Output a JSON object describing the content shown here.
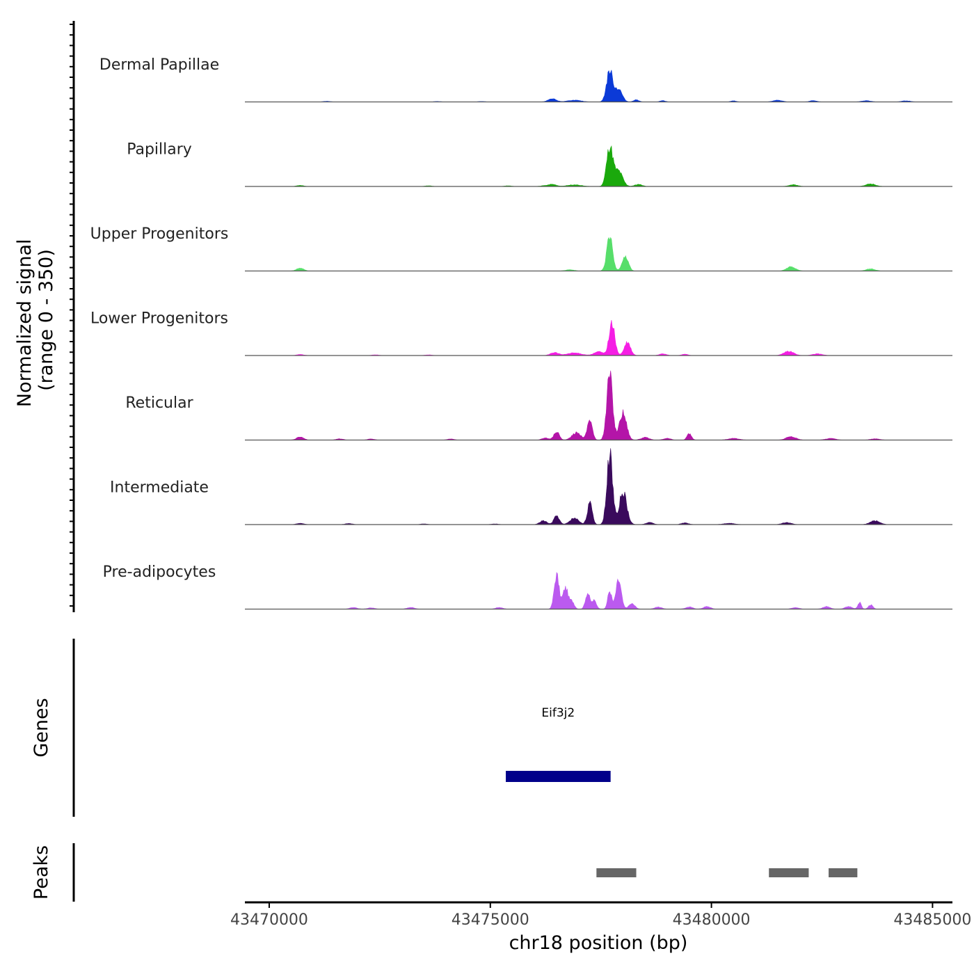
{
  "chart_data": {
    "type": "area",
    "title": "",
    "ylabel_line1": "Normalized signal",
    "ylabel_line2": "(range 0 - 350)",
    "yrange": [
      0,
      350
    ],
    "xlabel": "chr18 position (bp)",
    "xlim": [
      43469450,
      43485450
    ],
    "xticks": [
      43470000,
      43475000,
      43480000,
      43485000
    ],
    "xtick_labels": [
      "43470000",
      "43475000",
      "43480000",
      "43485000"
    ],
    "series": [
      {
        "name": "Dermal Papillae",
        "color": "#0b3ad7",
        "baseline": [
          [
            43471300,
            3
          ],
          [
            43473800,
            2
          ],
          [
            43474800,
            2
          ]
        ],
        "peaks": [
          [
            43476400,
            15,
            90
          ],
          [
            43476900,
            8,
            150
          ],
          [
            43477700,
            145,
            70
          ],
          [
            43477900,
            60,
            80
          ],
          [
            43478300,
            10,
            60
          ],
          [
            43478900,
            6,
            60
          ],
          [
            43480500,
            5,
            60
          ],
          [
            43481500,
            8,
            100
          ],
          [
            43482300,
            6,
            80
          ],
          [
            43483500,
            6,
            100
          ],
          [
            43484400,
            5,
            100
          ]
        ]
      },
      {
        "name": "Papillary",
        "color": "#1aa90c",
        "baseline": [
          [
            43470700,
            5
          ],
          [
            43473600,
            3
          ],
          [
            43475400,
            3
          ],
          [
            43476200,
            3
          ]
        ],
        "peaks": [
          [
            43476400,
            10,
            90
          ],
          [
            43476900,
            8,
            150
          ],
          [
            43477700,
            180,
            70
          ],
          [
            43477900,
            70,
            90
          ],
          [
            43478350,
            10,
            80
          ],
          [
            43481850,
            8,
            100
          ],
          [
            43483600,
            12,
            110
          ]
        ]
      },
      {
        "name": "Upper Progenitors",
        "color": "#57de6a",
        "baseline": [
          [
            43470700,
            14
          ]
        ],
        "peaks": [
          [
            43476800,
            6,
            100
          ],
          [
            43477700,
            160,
            65
          ],
          [
            43478050,
            70,
            70
          ],
          [
            43481800,
            20,
            100
          ],
          [
            43483600,
            10,
            100
          ]
        ]
      },
      {
        "name": "Lower Progenitors",
        "color": "#f51ee4",
        "baseline": [
          [
            43470700,
            5
          ],
          [
            43472400,
            3
          ],
          [
            43473600,
            3
          ]
        ],
        "peaks": [
          [
            43476450,
            14,
            90
          ],
          [
            43476900,
            12,
            160
          ],
          [
            43477450,
            18,
            100
          ],
          [
            43477750,
            150,
            65
          ],
          [
            43478100,
            60,
            70
          ],
          [
            43478900,
            8,
            80
          ],
          [
            43479400,
            6,
            70
          ],
          [
            43481750,
            20,
            110
          ],
          [
            43482400,
            8,
            110
          ]
        ]
      },
      {
        "name": "Reticular",
        "color": "#b415a8",
        "baseline": [
          [
            43470700,
            15
          ],
          [
            43471600,
            6
          ],
          [
            43472300,
            5
          ],
          [
            43474100,
            5
          ]
        ],
        "peaks": [
          [
            43476250,
            10,
            80
          ],
          [
            43476500,
            40,
            60
          ],
          [
            43476950,
            35,
            100
          ],
          [
            43477250,
            100,
            55
          ],
          [
            43477700,
            310,
            65
          ],
          [
            43478000,
            130,
            80
          ],
          [
            43478500,
            12,
            90
          ],
          [
            43479000,
            8,
            80
          ],
          [
            43479500,
            30,
            50
          ],
          [
            43480500,
            8,
            120
          ],
          [
            43481800,
            16,
            110
          ],
          [
            43482700,
            8,
            110
          ],
          [
            43483700,
            6,
            100
          ]
        ]
      },
      {
        "name": "Intermediate",
        "color": "#3a0a5c",
        "baseline": [
          [
            43470700,
            6
          ],
          [
            43471800,
            5
          ],
          [
            43473500,
            3
          ],
          [
            43475100,
            3
          ]
        ],
        "peaks": [
          [
            43476200,
            18,
            80
          ],
          [
            43476500,
            42,
            60
          ],
          [
            43476900,
            30,
            100
          ],
          [
            43477250,
            100,
            55
          ],
          [
            43477700,
            330,
            65
          ],
          [
            43478000,
            150,
            85
          ],
          [
            43478600,
            10,
            80
          ],
          [
            43479400,
            8,
            80
          ],
          [
            43480400,
            6,
            120
          ],
          [
            43481700,
            10,
            100
          ],
          [
            43483700,
            18,
            110
          ]
        ]
      },
      {
        "name": "Pre-adipocytes",
        "color": "#bb5aef",
        "baseline": [
          [
            43471900,
            8
          ],
          [
            43472300,
            6
          ],
          [
            43473200,
            8
          ],
          [
            43475200,
            8
          ],
          [
            43479500,
            10
          ],
          [
            43479900,
            12
          ],
          [
            43481900,
            8
          ],
          [
            43482600,
            12
          ],
          [
            43483100,
            12
          ]
        ],
        "peaks": [
          [
            43476500,
            160,
            55
          ],
          [
            43476700,
            100,
            60
          ],
          [
            43476850,
            35,
            50
          ],
          [
            43477200,
            75,
            50
          ],
          [
            43477350,
            40,
            50
          ],
          [
            43477700,
            85,
            45
          ],
          [
            43477900,
            135,
            60
          ],
          [
            43478200,
            25,
            70
          ],
          [
            43478800,
            10,
            80
          ],
          [
            43483350,
            30,
            40
          ],
          [
            43483600,
            20,
            50
          ]
        ]
      }
    ],
    "genes": [
      {
        "name": "Eif3j2",
        "start": 43475350,
        "end": 43477720,
        "color": "#01008a"
      }
    ],
    "genes_label": "Genes",
    "peaks_label": "Peaks",
    "peak_regions": [
      [
        43477400,
        43478300
      ],
      [
        43481300,
        43482200
      ],
      [
        43482650,
        43483300
      ]
    ],
    "peak_color": "#666666"
  }
}
